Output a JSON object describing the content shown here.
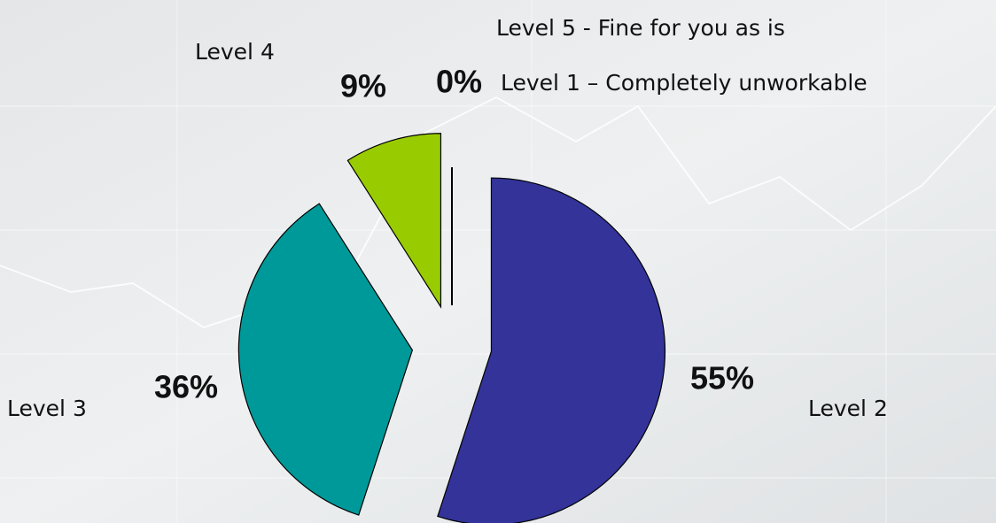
{
  "chart_data": {
    "type": "pie",
    "categories": [
      "Level 1 – Completely unworkable",
      "Level 2",
      "Level 3",
      "Level 4",
      "Level 5 - Fine for you as is"
    ],
    "values": [
      0,
      55,
      36,
      9,
      0
    ],
    "value_labels": [
      "0%",
      "55%",
      "36%",
      "9%",
      null
    ],
    "colors": [
      "#000000",
      "#333399",
      "#009999",
      "#99cc00",
      "#000000"
    ]
  }
}
